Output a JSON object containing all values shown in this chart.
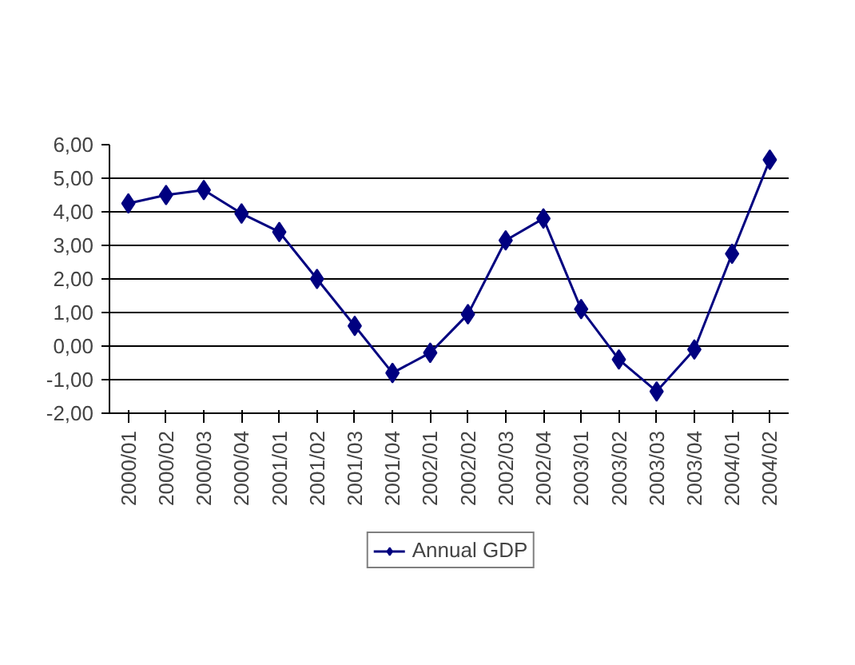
{
  "chart_data": {
    "type": "line",
    "categories": [
      "2000/01",
      "2000/02",
      "2000/03",
      "2000/04",
      "2001/01",
      "2001/02",
      "2001/03",
      "2001/04",
      "2002/01",
      "2002/02",
      "2002/03",
      "2002/04",
      "2003/01",
      "2003/02",
      "2003/03",
      "2003/04",
      "2004/01",
      "2004/02"
    ],
    "series": [
      {
        "name": "Annual GDP",
        "color": "#000080",
        "values": [
          4.25,
          4.5,
          4.65,
          3.95,
          3.4,
          2.0,
          0.6,
          -0.8,
          -0.2,
          0.95,
          3.15,
          3.8,
          1.1,
          -0.4,
          -1.35,
          -0.1,
          2.75,
          5.55
        ]
      }
    ],
    "ylim": [
      -2,
      6
    ],
    "yticks": [
      {
        "value": -2,
        "label": "-2,00"
      },
      {
        "value": -1,
        "label": "-1,00"
      },
      {
        "value": 0,
        "label": "0,00"
      },
      {
        "value": 1,
        "label": "1,00"
      },
      {
        "value": 2,
        "label": "2,00"
      },
      {
        "value": 3,
        "label": "3,00"
      },
      {
        "value": 4,
        "label": "4,00"
      },
      {
        "value": 5,
        "label": "5,00"
      },
      {
        "value": 6,
        "label": "6,00"
      }
    ],
    "grid": "y",
    "legend": "bottom",
    "marker": "diamond",
    "line_style": "solid"
  }
}
